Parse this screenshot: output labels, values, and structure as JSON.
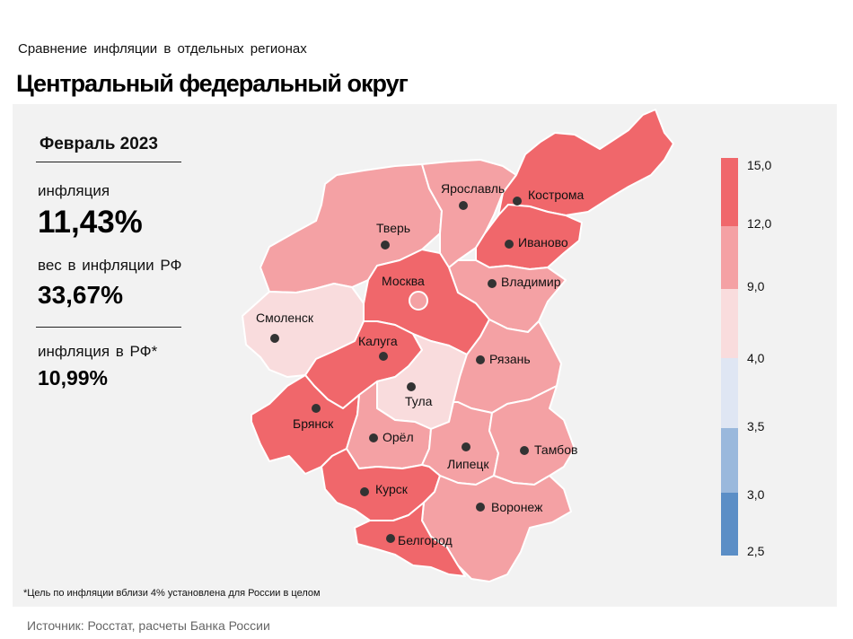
{
  "header": {
    "subtitle": "Сравнение  инфляции  в отдельных  регионах",
    "title": "Центральный федеральный округ"
  },
  "info": {
    "period": "Февраль 2023",
    "inflation_label": "инфляция",
    "inflation_value": "11,43%",
    "weight_label": "вес в инфляции  РФ",
    "weight_value": "33,67%",
    "rf_label": "инфляция  в РФ*",
    "rf_value": "10,99%"
  },
  "regions": {
    "moscow": "Москва",
    "tver": "Тверь",
    "yaroslavl": "Ярославль",
    "kostroma": "Кострома",
    "ivanovo": "Иваново",
    "vladimir": "Владимир",
    "smolensk": "Смоленск",
    "kaluga": "Калуга",
    "tula": "Тула",
    "ryazan": "Рязань",
    "bryansk": "Брянск",
    "orel": "Орёл",
    "lipetsk": "Липецк",
    "tambov": "Тамбов",
    "kursk": "Курск",
    "voronezh": "Воронеж",
    "belgorod": "Белгород"
  },
  "legend": {
    "ticks": [
      "15,0",
      "12,0",
      "9,0",
      "4,0",
      "3,5",
      "3,0",
      "2,5"
    ],
    "colors": [
      "#f0676b",
      "#f4a1a4",
      "#f9dcdd",
      "#dfe6f3",
      "#9ab8dc",
      "#5b8ec6"
    ]
  },
  "colors": {
    "dark_red": "#f0676b",
    "mid_red": "#f4a1a4",
    "light_pink": "#f9dcdd",
    "panel_bg": "#f2f2f2"
  },
  "footnote": "*Цель по инфляции вблизи 4% установлена для России в целом",
  "source": "Источник: Росстат, расчеты Банка России"
}
